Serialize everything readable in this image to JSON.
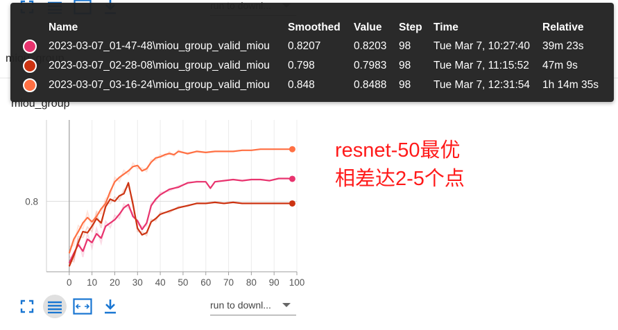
{
  "toolbar": {
    "fullscreen_icon": "fullscreen-icon",
    "legend_icon": "legend-list-icon",
    "fit_icon": "fit-domain-icon",
    "download_icon": "download-icon",
    "download_label": "run to downl..."
  },
  "group_title": "miou_group",
  "chart_title": "miou_group",
  "tooltip": {
    "headers": {
      "name": "Name",
      "smoothed": "Smoothed",
      "value": "Value",
      "step": "Step",
      "time": "Time",
      "relative": "Relative"
    },
    "rows": [
      {
        "color": "#e8336e",
        "name": "2023-03-07_01-47-48\\miou_group_valid_miou",
        "smoothed": "0.8207",
        "value": "0.8203",
        "step": "98",
        "time": "Tue Mar 7, 10:27:40",
        "relative": "39m 23s"
      },
      {
        "color": "#cc3311",
        "name": "2023-03-07_02-28-08\\miou_group_valid_miou",
        "smoothed": "0.798",
        "value": "0.7983",
        "step": "98",
        "time": "Tue Mar 7, 11:15:52",
        "relative": "47m 9s"
      },
      {
        "color": "#ff7043",
        "name": "2023-03-07_03-16-24\\miou_group_valid_miou",
        "smoothed": "0.848",
        "value": "0.8488",
        "step": "98",
        "time": "Tue Mar 7, 12:31:54",
        "relative": "1h 14m 35s"
      }
    ]
  },
  "annotation": {
    "line1": "resnet-50最优",
    "line2": "相差达2-5个点"
  },
  "chart_data": {
    "type": "line",
    "title": "",
    "xlabel": "",
    "ylabel": "",
    "xlim": [
      -10,
      100
    ],
    "ylim": [
      0.735,
      0.875
    ],
    "x_ticks": [
      0,
      10,
      20,
      30,
      40,
      50,
      60,
      70,
      80,
      90,
      100
    ],
    "y_ticks": [
      0.8
    ],
    "y_tick_labels": [
      "0.8"
    ],
    "grid": true,
    "series": [
      {
        "color": "#e8336e",
        "x": [
          0,
          2,
          4,
          6,
          8,
          10,
          12,
          14,
          16,
          18,
          20,
          22,
          24,
          26,
          28,
          30,
          32,
          34,
          36,
          38,
          40,
          44,
          48,
          52,
          56,
          60,
          62,
          64,
          68,
          72,
          76,
          80,
          84,
          88,
          92,
          96,
          98
        ],
        "values": [
          0.743,
          0.752,
          0.76,
          0.754,
          0.765,
          0.762,
          0.77,
          0.766,
          0.777,
          0.78,
          0.783,
          0.788,
          0.794,
          0.797,
          0.786,
          0.782,
          0.774,
          0.78,
          0.796,
          0.802,
          0.806,
          0.811,
          0.813,
          0.817,
          0.818,
          0.818,
          0.812,
          0.818,
          0.819,
          0.82,
          0.819,
          0.82,
          0.82,
          0.819,
          0.821,
          0.821,
          0.8207
        ]
      },
      {
        "color": "#cc3311",
        "x": [
          0,
          2,
          4,
          6,
          8,
          10,
          12,
          14,
          16,
          18,
          20,
          22,
          24,
          26,
          28,
          30,
          32,
          34,
          36,
          38,
          40,
          44,
          48,
          52,
          56,
          60,
          64,
          68,
          72,
          76,
          80,
          84,
          88,
          92,
          96,
          98
        ],
        "values": [
          0.74,
          0.75,
          0.762,
          0.772,
          0.771,
          0.777,
          0.784,
          0.78,
          0.795,
          0.802,
          0.8,
          0.805,
          0.807,
          0.817,
          0.797,
          0.775,
          0.769,
          0.771,
          0.781,
          0.784,
          0.788,
          0.791,
          0.794,
          0.796,
          0.798,
          0.798,
          0.799,
          0.798,
          0.799,
          0.798,
          0.798,
          0.798,
          0.798,
          0.798,
          0.798,
          0.798
        ]
      },
      {
        "color": "#ff7043",
        "x": [
          0,
          2,
          4,
          6,
          8,
          10,
          12,
          14,
          16,
          18,
          20,
          22,
          24,
          26,
          28,
          30,
          32,
          34,
          36,
          38,
          40,
          42,
          44,
          46,
          48,
          52,
          56,
          60,
          64,
          68,
          72,
          76,
          80,
          84,
          88,
          92,
          96,
          98
        ],
        "values": [
          0.752,
          0.765,
          0.772,
          0.78,
          0.785,
          0.781,
          0.786,
          0.793,
          0.798,
          0.809,
          0.818,
          0.822,
          0.825,
          0.828,
          0.832,
          0.833,
          0.828,
          0.83,
          0.836,
          0.84,
          0.841,
          0.843,
          0.844,
          0.843,
          0.846,
          0.844,
          0.846,
          0.845,
          0.846,
          0.846,
          0.846,
          0.847,
          0.847,
          0.848,
          0.848,
          0.848,
          0.848,
          0.848
        ]
      }
    ]
  }
}
